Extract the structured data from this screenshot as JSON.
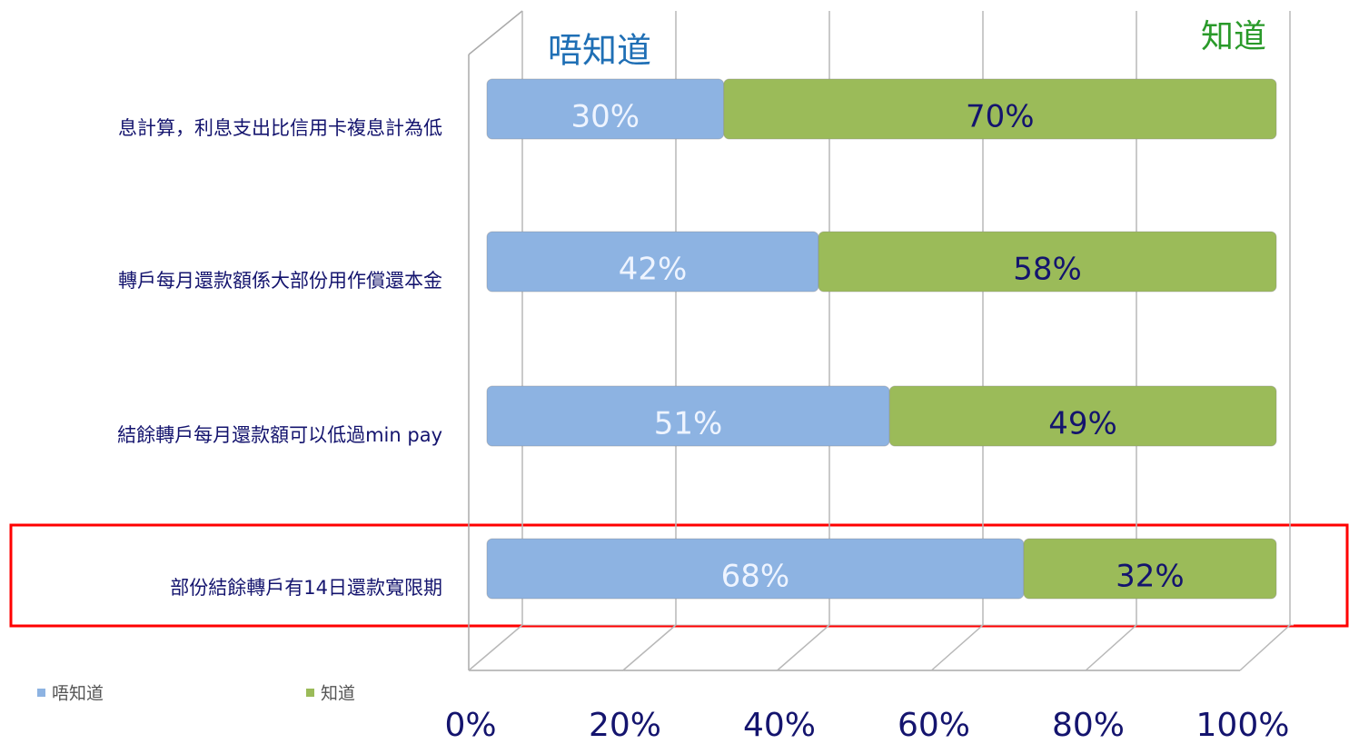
{
  "chart_data": {
    "type": "bar",
    "orientation": "horizontal",
    "stacked": true,
    "categories": [
      "息計算，利息支出比信用卡複息計為低",
      "轉戶每月還款額係大部份用作償還本金",
      "結餘轉戶每月還款額可以低過min pay",
      "部份結餘轉戶有14日還款寬限期"
    ],
    "series": [
      {
        "name": "唔知道",
        "color": "#8db3e2",
        "label_color": "#eef4ff",
        "values": [
          30,
          42,
          51,
          68
        ],
        "value_labels": [
          "30%",
          "42%",
          "51%",
          "68%"
        ]
      },
      {
        "name": "知道",
        "color": "#9bbb59",
        "label_color": "#14146e",
        "values": [
          70,
          58,
          49,
          32
        ],
        "value_labels": [
          "70%",
          "58%",
          "49%",
          "32%"
        ]
      }
    ],
    "xlim": [
      0,
      100
    ],
    "xticks": [
      {
        "value": 0,
        "label": "0%"
      },
      {
        "value": 20,
        "label": "20%"
      },
      {
        "value": 40,
        "label": "40%"
      },
      {
        "value": 60,
        "label": "60%"
      },
      {
        "value": 80,
        "label": "80%"
      },
      {
        "value": 100,
        "label": "100%"
      }
    ],
    "annotations": [
      {
        "text": "唔知道",
        "color": "#1f6fb5"
      },
      {
        "text": "知道",
        "color": "#2a9a2a"
      }
    ],
    "grid": true,
    "legend": "bottom-left"
  }
}
